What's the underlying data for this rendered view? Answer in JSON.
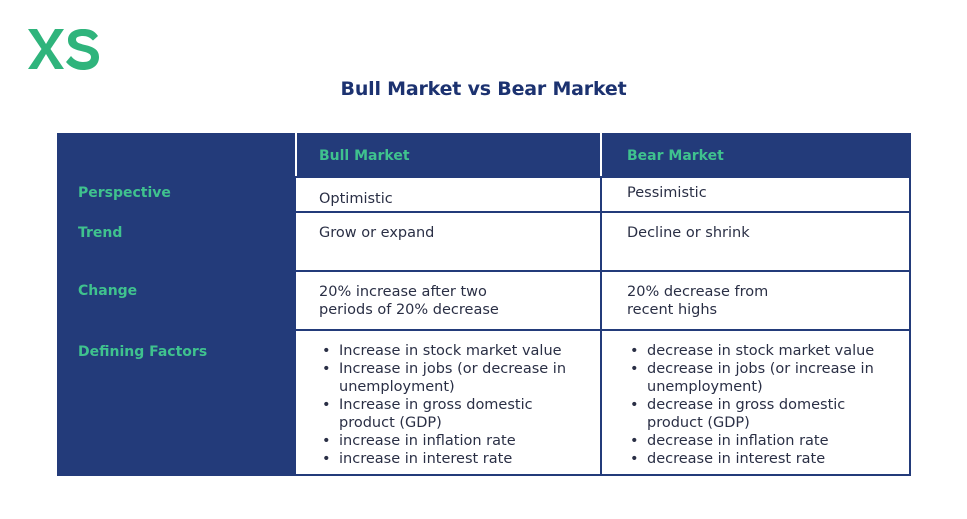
{
  "brand": {
    "logo_text": "XS",
    "color": "#2fb47c"
  },
  "title": "Bull Market vs Bear Market",
  "table": {
    "columns": [
      "",
      "Bull Market",
      "Bear Market"
    ],
    "rows": [
      {
        "label": "Perspective",
        "bull": "Optimistic",
        "bear": "Pessimistic"
      },
      {
        "label": "Trend",
        "bull": "Grow or expand",
        "bear": "Decline or shrink"
      },
      {
        "label": "Change",
        "bull": [
          "20% increase after two",
          "periods of 20% decrease"
        ],
        "bear": [
          "20% decrease from",
          "recent highs"
        ]
      },
      {
        "label": "Defining Factors",
        "bull": [
          "Increase in stock market value",
          "Increase in jobs (or decrease in unemployment)",
          "Increase in gross domestic product (GDP)",
          "increase in inflation rate",
          "increase in interest rate"
        ],
        "bear": [
          "decrease in stock market value",
          "decrease in jobs (or increase in unemployment)",
          "decrease in gross domestic product (GDP)",
          "decrease in inflation rate",
          "decrease in interest rate"
        ]
      }
    ]
  },
  "colors": {
    "navy": "#233b7a",
    "green": "#3fc28e",
    "text": "#2a2f45"
  }
}
